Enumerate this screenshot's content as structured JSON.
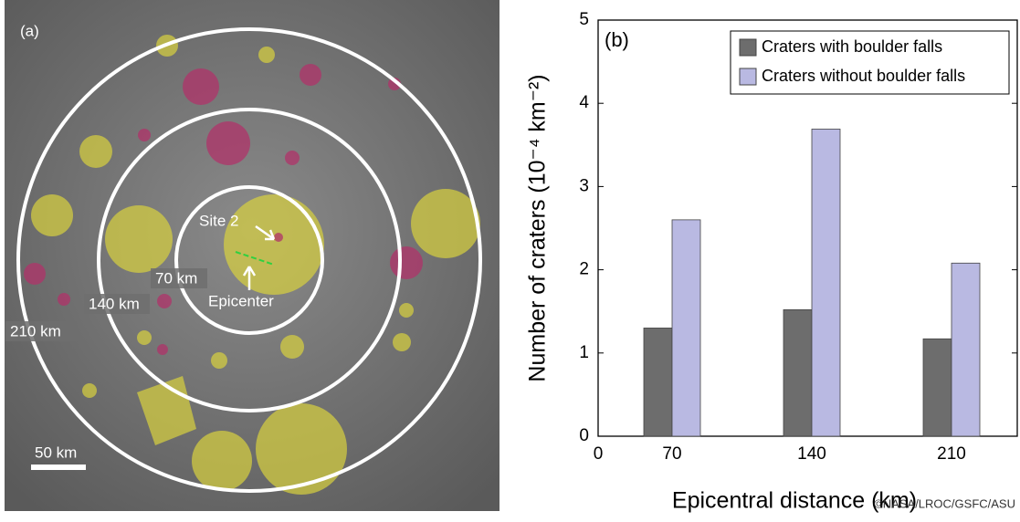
{
  "panel_a": {
    "label": "(a)",
    "site_label": "Site 2",
    "epicenter_label": "Epicenter",
    "ring_labels": [
      "70 km",
      "140 km",
      "210 km"
    ],
    "scale_label": "50 km"
  },
  "chart_data": {
    "type": "bar",
    "panel_label": "(b)",
    "x_label": "Epicentral distance (km)",
    "y_label": "Number of craters (10⁻⁴ km⁻²)",
    "x_origin_label": "0",
    "categories": [
      "70",
      "140",
      "210"
    ],
    "series": [
      {
        "name": "Craters with boulder falls",
        "color": "#6d6d6d",
        "values": [
          1.3,
          1.52,
          1.17
        ]
      },
      {
        "name": "Craters without boulder falls",
        "color": "#b9b9e2",
        "values": [
          2.6,
          3.69,
          2.08
        ]
      }
    ],
    "ylim": [
      0,
      5
    ],
    "yticks": [
      0,
      1,
      2,
      3,
      4,
      5
    ],
    "legend": "top-right"
  },
  "credit": "©NASA/LROC/GSFC/ASU"
}
